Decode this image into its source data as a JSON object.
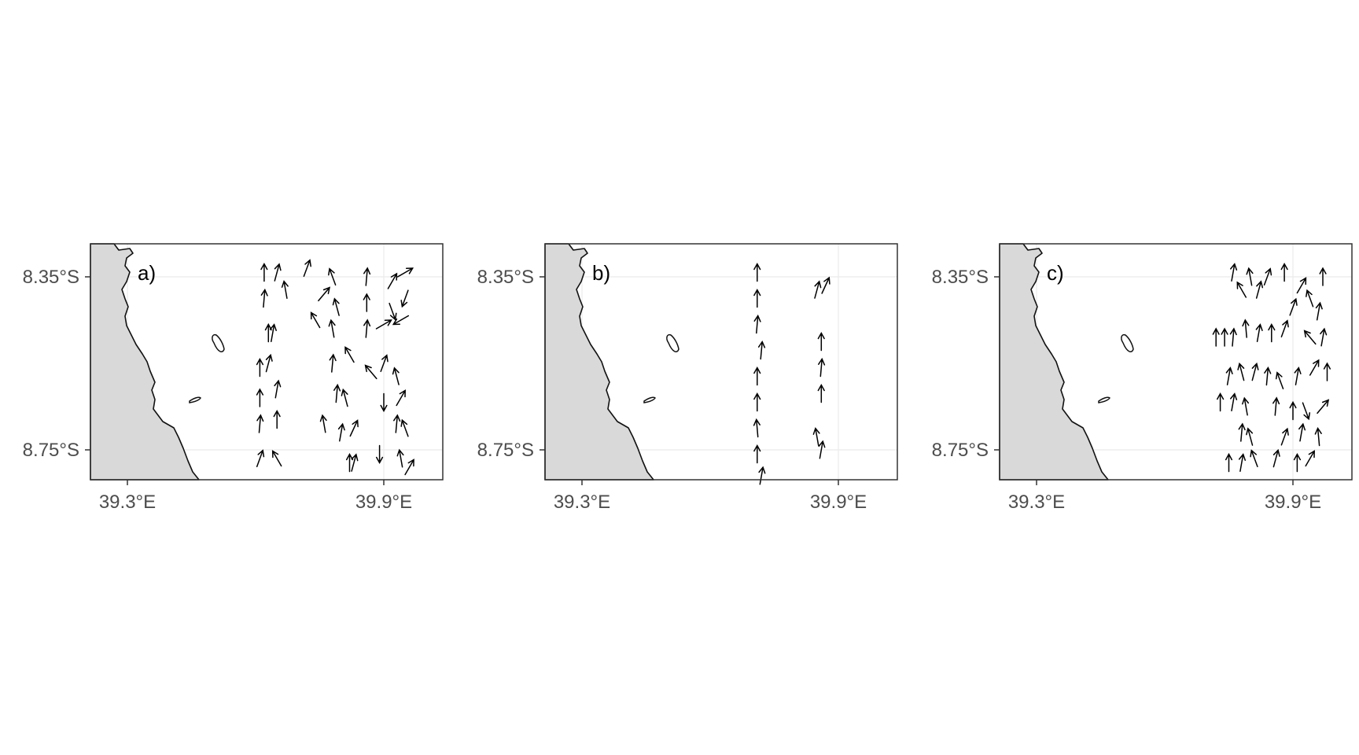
{
  "figure": {
    "panels": [
      {
        "id": "a",
        "label": "a)",
        "lat_ticks": [
          "8.35°S",
          "8.75°S"
        ],
        "lon_ticks": [
          "39.3°E",
          "39.9°E"
        ],
        "vectors": [
          {
            "lon": 39.62,
            "lat": 8.34,
            "dir": 0
          },
          {
            "lon": 39.65,
            "lat": 8.34,
            "dir": 15
          },
          {
            "lon": 39.72,
            "lat": 8.33,
            "dir": 20
          },
          {
            "lon": 39.78,
            "lat": 8.35,
            "dir": -20
          },
          {
            "lon": 39.86,
            "lat": 8.35,
            "dir": 5
          },
          {
            "lon": 39.92,
            "lat": 8.36,
            "dir": 30
          },
          {
            "lon": 39.95,
            "lat": 8.34,
            "dir": 60
          },
          {
            "lon": 39.62,
            "lat": 8.4,
            "dir": 5
          },
          {
            "lon": 39.67,
            "lat": 8.38,
            "dir": -10
          },
          {
            "lon": 39.76,
            "lat": 8.39,
            "dir": 40
          },
          {
            "lon": 39.79,
            "lat": 8.42,
            "dir": -15
          },
          {
            "lon": 39.86,
            "lat": 8.41,
            "dir": 0
          },
          {
            "lon": 39.92,
            "lat": 8.43,
            "dir": 160
          },
          {
            "lon": 39.95,
            "lat": 8.4,
            "dir": 200
          },
          {
            "lon": 39.63,
            "lat": 8.48,
            "dir": 0
          },
          {
            "lon": 39.64,
            "lat": 8.48,
            "dir": 10
          },
          {
            "lon": 39.74,
            "lat": 8.45,
            "dir": -30
          },
          {
            "lon": 39.78,
            "lat": 8.47,
            "dir": -10
          },
          {
            "lon": 39.86,
            "lat": 8.47,
            "dir": 5
          },
          {
            "lon": 39.9,
            "lat": 8.46,
            "dir": 60
          },
          {
            "lon": 39.94,
            "lat": 8.45,
            "dir": 240
          },
          {
            "lon": 39.61,
            "lat": 8.56,
            "dir": 0
          },
          {
            "lon": 39.63,
            "lat": 8.55,
            "dir": 15
          },
          {
            "lon": 39.78,
            "lat": 8.55,
            "dir": 5
          },
          {
            "lon": 39.82,
            "lat": 8.53,
            "dir": -30
          },
          {
            "lon": 39.87,
            "lat": 8.57,
            "dir": -40
          },
          {
            "lon": 39.9,
            "lat": 8.55,
            "dir": 20
          },
          {
            "lon": 39.93,
            "lat": 8.58,
            "dir": -15
          },
          {
            "lon": 39.61,
            "lat": 8.63,
            "dir": 0
          },
          {
            "lon": 39.65,
            "lat": 8.61,
            "dir": 10
          },
          {
            "lon": 39.79,
            "lat": 8.62,
            "dir": 5
          },
          {
            "lon": 39.81,
            "lat": 8.63,
            "dir": -15
          },
          {
            "lon": 39.9,
            "lat": 8.64,
            "dir": 180
          },
          {
            "lon": 39.94,
            "lat": 8.63,
            "dir": 30
          },
          {
            "lon": 39.61,
            "lat": 8.69,
            "dir": 5
          },
          {
            "lon": 39.65,
            "lat": 8.68,
            "dir": 0
          },
          {
            "lon": 39.76,
            "lat": 8.69,
            "dir": -10
          },
          {
            "lon": 39.8,
            "lat": 8.71,
            "dir": 10
          },
          {
            "lon": 39.83,
            "lat": 8.7,
            "dir": 25
          },
          {
            "lon": 39.93,
            "lat": 8.69,
            "dir": 5
          },
          {
            "lon": 39.95,
            "lat": 8.7,
            "dir": -20
          },
          {
            "lon": 39.61,
            "lat": 8.77,
            "dir": 20
          },
          {
            "lon": 39.65,
            "lat": 8.77,
            "dir": -30
          },
          {
            "lon": 39.82,
            "lat": 8.78,
            "dir": 0
          },
          {
            "lon": 39.83,
            "lat": 8.78,
            "dir": 15
          },
          {
            "lon": 39.89,
            "lat": 8.76,
            "dir": 180
          },
          {
            "lon": 39.94,
            "lat": 8.77,
            "dir": -10
          },
          {
            "lon": 39.96,
            "lat": 8.79,
            "dir": 30
          }
        ]
      },
      {
        "id": "b",
        "label": "b)",
        "lat_ticks": [
          "8.35°S",
          "8.75°S"
        ],
        "lon_ticks": [
          "39.3°E",
          "39.9°E"
        ],
        "vectors": [
          {
            "lon": 39.71,
            "lat": 8.34,
            "dir": 0
          },
          {
            "lon": 39.71,
            "lat": 8.4,
            "dir": 0
          },
          {
            "lon": 39.71,
            "lat": 8.46,
            "dir": 5
          },
          {
            "lon": 39.72,
            "lat": 8.52,
            "dir": 5
          },
          {
            "lon": 39.71,
            "lat": 8.58,
            "dir": 0
          },
          {
            "lon": 39.71,
            "lat": 8.64,
            "dir": 0
          },
          {
            "lon": 39.71,
            "lat": 8.7,
            "dir": -5
          },
          {
            "lon": 39.71,
            "lat": 8.76,
            "dir": 0
          },
          {
            "lon": 39.72,
            "lat": 8.81,
            "dir": 10
          },
          {
            "lon": 39.85,
            "lat": 8.38,
            "dir": 15
          },
          {
            "lon": 39.87,
            "lat": 8.37,
            "dir": 25
          },
          {
            "lon": 39.86,
            "lat": 8.5,
            "dir": 0
          },
          {
            "lon": 39.86,
            "lat": 8.56,
            "dir": 5
          },
          {
            "lon": 39.86,
            "lat": 8.62,
            "dir": 0
          },
          {
            "lon": 39.85,
            "lat": 8.72,
            "dir": -10
          },
          {
            "lon": 39.86,
            "lat": 8.75,
            "dir": 10
          }
        ]
      },
      {
        "id": "c",
        "label": "c)",
        "lat_ticks": [
          "8.35°S",
          "8.75°S"
        ],
        "lon_ticks": [
          "39.3°E",
          "39.9°E"
        ],
        "vectors": [
          {
            "lon": 39.76,
            "lat": 8.34,
            "dir": 10
          },
          {
            "lon": 39.8,
            "lat": 8.35,
            "dir": -10
          },
          {
            "lon": 39.84,
            "lat": 8.35,
            "dir": 20
          },
          {
            "lon": 39.88,
            "lat": 8.34,
            "dir": 0
          },
          {
            "lon": 39.92,
            "lat": 8.37,
            "dir": 30
          },
          {
            "lon": 39.97,
            "lat": 8.35,
            "dir": 0
          },
          {
            "lon": 39.78,
            "lat": 8.38,
            "dir": -30
          },
          {
            "lon": 39.82,
            "lat": 8.38,
            "dir": 15
          },
          {
            "lon": 39.9,
            "lat": 8.42,
            "dir": 20
          },
          {
            "lon": 39.94,
            "lat": 8.4,
            "dir": -20
          },
          {
            "lon": 39.96,
            "lat": 8.43,
            "dir": 10
          },
          {
            "lon": 39.72,
            "lat": 8.49,
            "dir": 0
          },
          {
            "lon": 39.74,
            "lat": 8.49,
            "dir": 0
          },
          {
            "lon": 39.76,
            "lat": 8.49,
            "dir": 5
          },
          {
            "lon": 39.79,
            "lat": 8.47,
            "dir": -5
          },
          {
            "lon": 39.82,
            "lat": 8.48,
            "dir": 10
          },
          {
            "lon": 39.85,
            "lat": 8.48,
            "dir": 0
          },
          {
            "lon": 39.88,
            "lat": 8.47,
            "dir": 20
          },
          {
            "lon": 39.94,
            "lat": 8.49,
            "dir": -40
          },
          {
            "lon": 39.97,
            "lat": 8.49,
            "dir": 10
          },
          {
            "lon": 39.75,
            "lat": 8.58,
            "dir": 10
          },
          {
            "lon": 39.78,
            "lat": 8.57,
            "dir": -15
          },
          {
            "lon": 39.81,
            "lat": 8.57,
            "dir": 15
          },
          {
            "lon": 39.84,
            "lat": 8.58,
            "dir": 5
          },
          {
            "lon": 39.87,
            "lat": 8.59,
            "dir": -20
          },
          {
            "lon": 39.91,
            "lat": 8.58,
            "dir": 10
          },
          {
            "lon": 39.95,
            "lat": 8.56,
            "dir": 30
          },
          {
            "lon": 39.98,
            "lat": 8.57,
            "dir": 0
          },
          {
            "lon": 39.73,
            "lat": 8.64,
            "dir": 0
          },
          {
            "lon": 39.76,
            "lat": 8.64,
            "dir": 10
          },
          {
            "lon": 39.79,
            "lat": 8.65,
            "dir": -10
          },
          {
            "lon": 39.86,
            "lat": 8.65,
            "dir": 5
          },
          {
            "lon": 39.9,
            "lat": 8.66,
            "dir": 0
          },
          {
            "lon": 39.93,
            "lat": 8.66,
            "dir": 160
          },
          {
            "lon": 39.97,
            "lat": 8.65,
            "dir": 40
          },
          {
            "lon": 39.78,
            "lat": 8.71,
            "dir": 5
          },
          {
            "lon": 39.8,
            "lat": 8.72,
            "dir": -15
          },
          {
            "lon": 39.88,
            "lat": 8.72,
            "dir": 20
          },
          {
            "lon": 39.92,
            "lat": 8.71,
            "dir": 10
          },
          {
            "lon": 39.96,
            "lat": 8.72,
            "dir": -5
          },
          {
            "lon": 39.75,
            "lat": 8.78,
            "dir": 0
          },
          {
            "lon": 39.78,
            "lat": 8.78,
            "dir": 10
          },
          {
            "lon": 39.81,
            "lat": 8.77,
            "dir": -20
          },
          {
            "lon": 39.86,
            "lat": 8.77,
            "dir": 15
          },
          {
            "lon": 39.91,
            "lat": 8.78,
            "dir": 0
          },
          {
            "lon": 39.94,
            "lat": 8.77,
            "dir": 30
          }
        ]
      }
    ]
  }
}
